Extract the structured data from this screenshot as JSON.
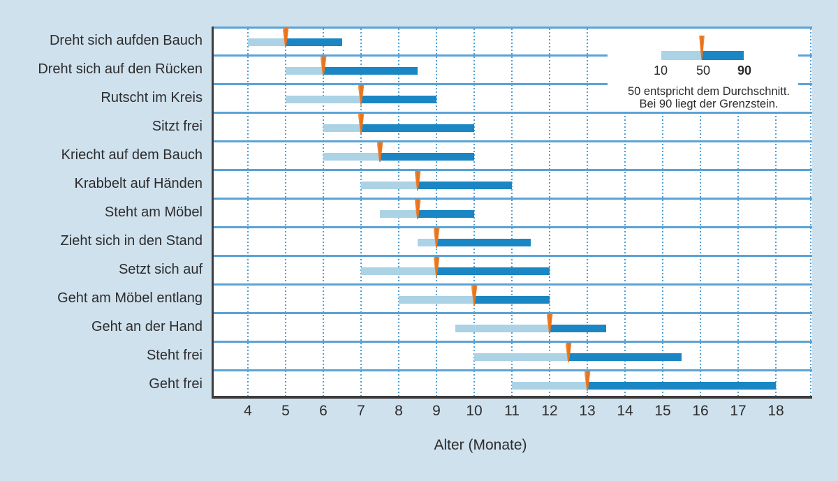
{
  "chart_data": {
    "type": "bar",
    "orientation": "horizontal-range",
    "title": "",
    "categories": [
      "Dreht sich aufden Bauch",
      "Dreht sich auf den Rücken",
      "Rutscht im Kreis",
      "Sitzt frei",
      "Kriecht auf dem Bauch",
      "Krabbelt auf Händen",
      "Steht am Möbel",
      "Zieht sich in den Stand",
      "Setzt sich auf",
      "Geht am Möbel entlang",
      "Geht an der Hand",
      "Steht frei",
      "Geht frei"
    ],
    "series": [
      {
        "name": "10. Perzentil (Beginn heller Balken)",
        "values": [
          4,
          5,
          5,
          6,
          6,
          7,
          7.5,
          8.5,
          7,
          8,
          9.5,
          10,
          11
        ]
      },
      {
        "name": "50. Perzentil (Durchschnitt, oranger Marker)",
        "values": [
          5,
          6,
          7,
          7,
          7.5,
          8.5,
          8.5,
          9,
          9,
          10,
          12,
          12.5,
          13
        ]
      },
      {
        "name": "90. Perzentil (Grenzstein, Ende dunkler Balken)",
        "values": [
          6.5,
          8.5,
          9,
          10,
          10,
          11,
          10,
          11.5,
          12,
          12,
          13.5,
          15.5,
          18
        ]
      }
    ],
    "xlabel": "Alter (Monate)",
    "xlim": [
      3,
      19.2
    ],
    "x_ticks": [
      4,
      5,
      6,
      7,
      8,
      9,
      10,
      11,
      12,
      13,
      14,
      15,
      16,
      17,
      18
    ],
    "grid": "vertical-dotted",
    "legend_position": "top-right"
  },
  "legend": {
    "tick_10": "10",
    "tick_50": "50",
    "tick_90": "90",
    "caption_line1": "50 entspricht dem Durchschnitt.",
    "caption_line2": "Bei 90 liegt der Grenzstein."
  },
  "colors": {
    "page_bg": "#cfe1ec",
    "plot_bg": "#ffffff",
    "bar_light": "#abd2e5",
    "bar_dark": "#1a86c3",
    "marker_orange": "#e9731c",
    "marker_orange_edge": "#f5a159",
    "grid_blue": "#4f9fd5",
    "separator_blue": "#5aa3d6",
    "axis_dark": "#3c3c3e",
    "text": "#2c2c2e"
  }
}
